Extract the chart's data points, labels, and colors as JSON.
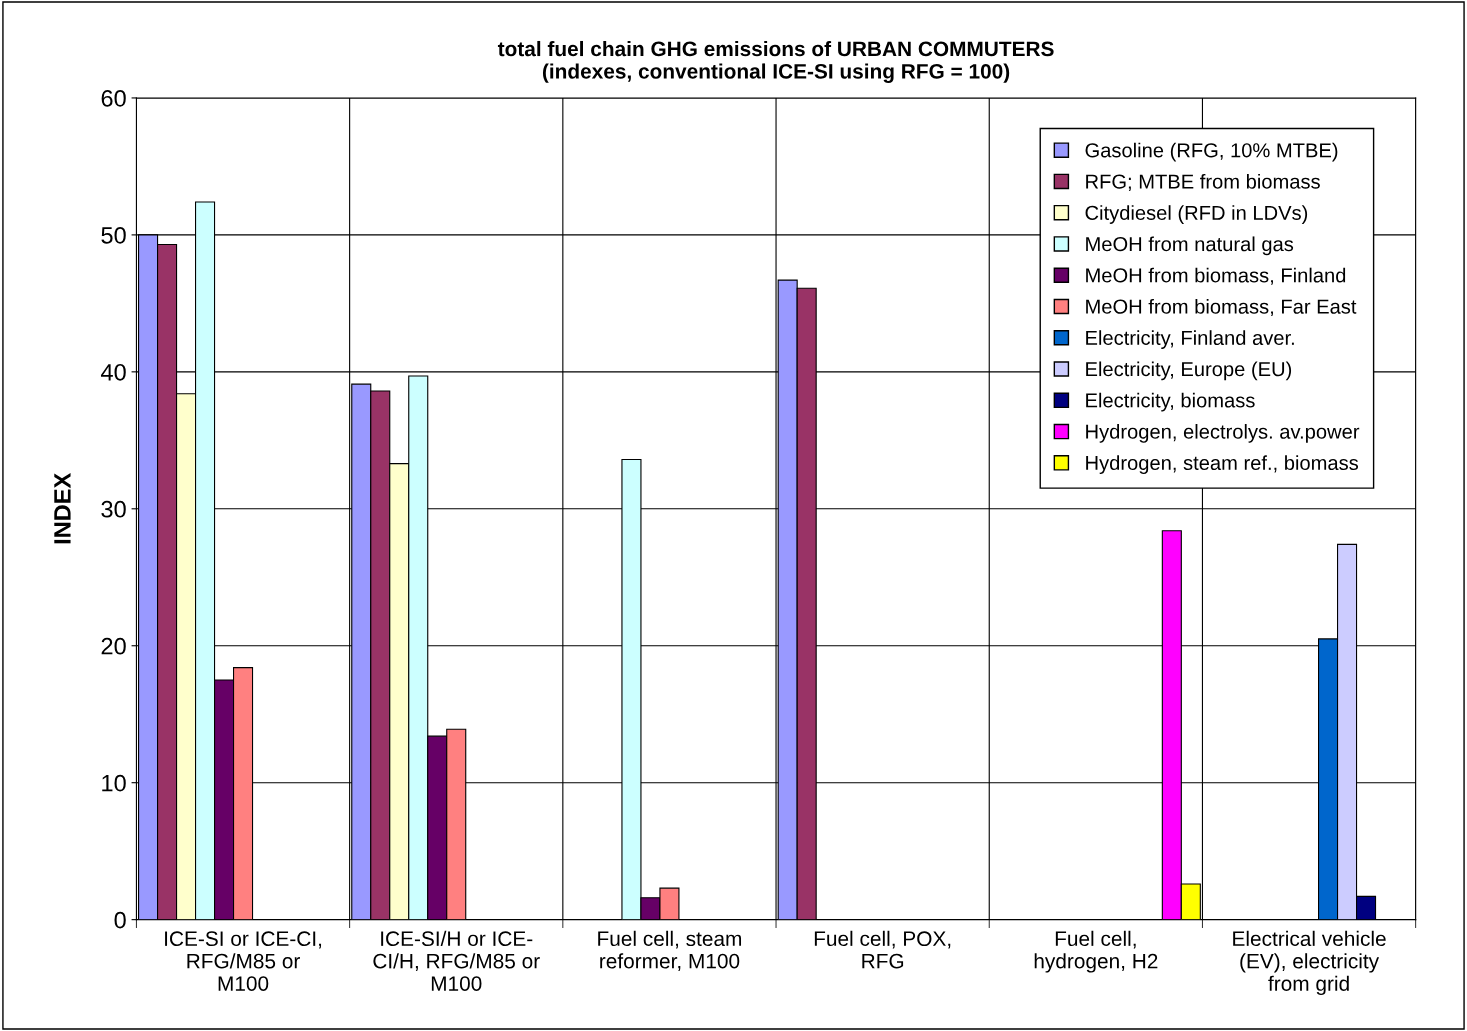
{
  "chart_data": {
    "type": "bar",
    "title": "total fuel chain GHG emissions of URBAN COMMUTERS\n(indexes, conventional ICE-SI using RFG = 100)",
    "ylabel": "INDEX",
    "categories": [
      "ICE-SI or ICE-CI,\nRFG/M85 or\nM100",
      "ICE-SI/H or ICE-\nCI/H, RFG/M85 or\nM100",
      "Fuel cell, steam\nreformer, M100",
      "Fuel cell, POX,\nRFG",
      "Fuel cell,\nhydrogen, H2",
      "Electrical vehicle\n(EV), electricity\nfrom grid"
    ],
    "series": [
      {
        "name": "Gasoline (RFG, 10% MTBE)",
        "color": "#9999ff",
        "values": [
          50.0,
          39.1,
          null,
          46.7,
          null,
          null
        ]
      },
      {
        "name": "RFG; MTBE from biomass",
        "color": "#993366",
        "values": [
          49.3,
          38.6,
          null,
          46.1,
          null,
          null
        ]
      },
      {
        "name": "Citydiesel (RFD in LDVs)",
        "color": "#ffffcc",
        "values": [
          38.4,
          33.3,
          null,
          null,
          null,
          null
        ]
      },
      {
        "name": "MeOH from natural gas",
        "color": "#ccffff",
        "values": [
          52.4,
          39.7,
          33.6,
          null,
          null,
          null
        ]
      },
      {
        "name": "MeOH from biomass, Finland",
        "color": "#660066",
        "values": [
          17.5,
          13.4,
          1.6,
          null,
          null,
          null
        ]
      },
      {
        "name": "MeOH from biomass, Far East",
        "color": "#ff8080",
        "values": [
          18.4,
          13.9,
          2.3,
          null,
          null,
          null
        ]
      },
      {
        "name": "Electricity, Finland aver.",
        "color": "#0066cc",
        "values": [
          null,
          null,
          null,
          null,
          null,
          20.5
        ]
      },
      {
        "name": "Electricity, Europe (EU)",
        "color": "#ccccff",
        "values": [
          null,
          null,
          null,
          null,
          null,
          27.4
        ]
      },
      {
        "name": "Electricity, biomass",
        "color": "#000080",
        "values": [
          null,
          null,
          null,
          null,
          null,
          1.7
        ]
      },
      {
        "name": "Hydrogen, electrolys. av.power",
        "color": "#ff00ff",
        "values": [
          null,
          null,
          null,
          null,
          28.4,
          null
        ]
      },
      {
        "name": "Hydrogen, steam ref., biomass",
        "color": "#ffff00",
        "values": [
          null,
          null,
          null,
          null,
          2.6,
          null
        ]
      }
    ],
    "ylim": [
      0,
      60
    ],
    "yticks": [
      0,
      10,
      20,
      30,
      40,
      50,
      60
    ],
    "grid": true,
    "legend": "top right"
  }
}
